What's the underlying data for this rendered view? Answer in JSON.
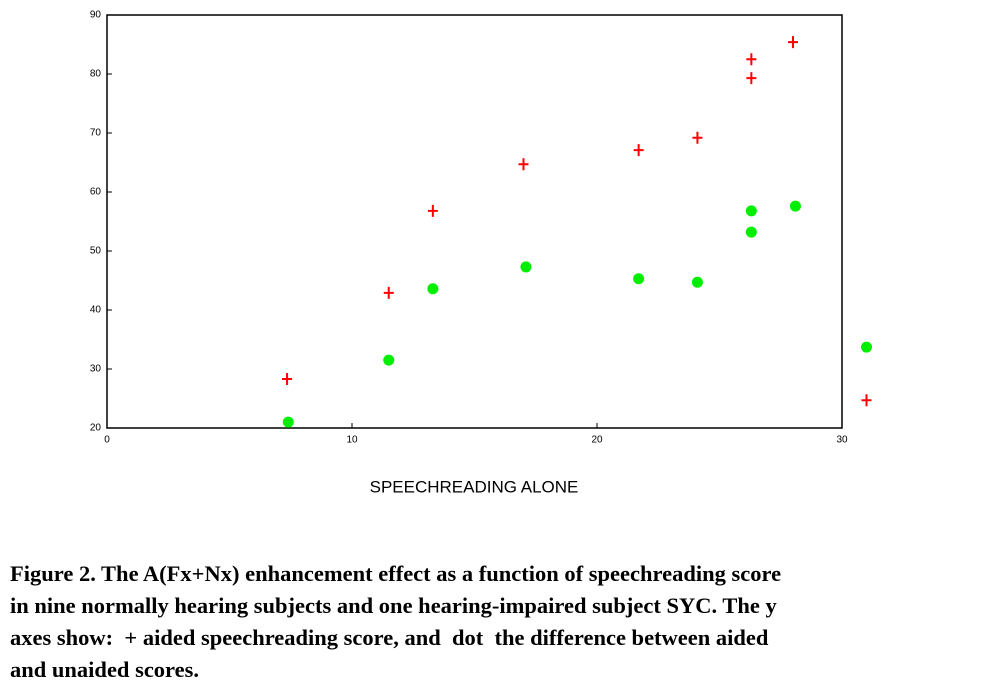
{
  "chart_data": {
    "type": "scatter",
    "x_label": "SPEECHREADING ALONE",
    "xlim": [
      0,
      30
    ],
    "xticks": [
      0,
      10,
      20,
      30
    ],
    "ylim": [
      20,
      90
    ],
    "yticks": [
      20,
      30,
      40,
      50,
      60,
      70,
      80,
      90
    ],
    "series": [
      {
        "marker": "plus",
        "color": "#ff0000",
        "x": [
          7.35,
          11.5,
          13.3,
          17.0,
          21.7,
          24.1,
          26.3,
          26.3,
          28.0,
          31.0
        ],
        "values": [
          28.3,
          42.9,
          56.8,
          64.7,
          67.1,
          69.2,
          82.5,
          79.3,
          85.4,
          24.7
        ]
      },
      {
        "marker": "dot",
        "color": "#00ee00",
        "x": [
          7.4,
          11.5,
          13.3,
          17.1,
          21.7,
          24.1,
          26.3,
          26.3,
          28.1,
          31.0
        ],
        "values": [
          21.0,
          31.5,
          43.6,
          47.3,
          45.3,
          44.7,
          56.8,
          53.2,
          57.6,
          33.7
        ]
      }
    ]
  },
  "caption": [
    "Figure 2. The A(Fx+Nx) enhancement effect as a function of speechreading score",
    "in nine normally hearing subjects and one hearing-impaired subject SYC. The y",
    "axes show:  + aided speechreading score, and  dot  the difference between aided",
    "and unaided scores."
  ]
}
